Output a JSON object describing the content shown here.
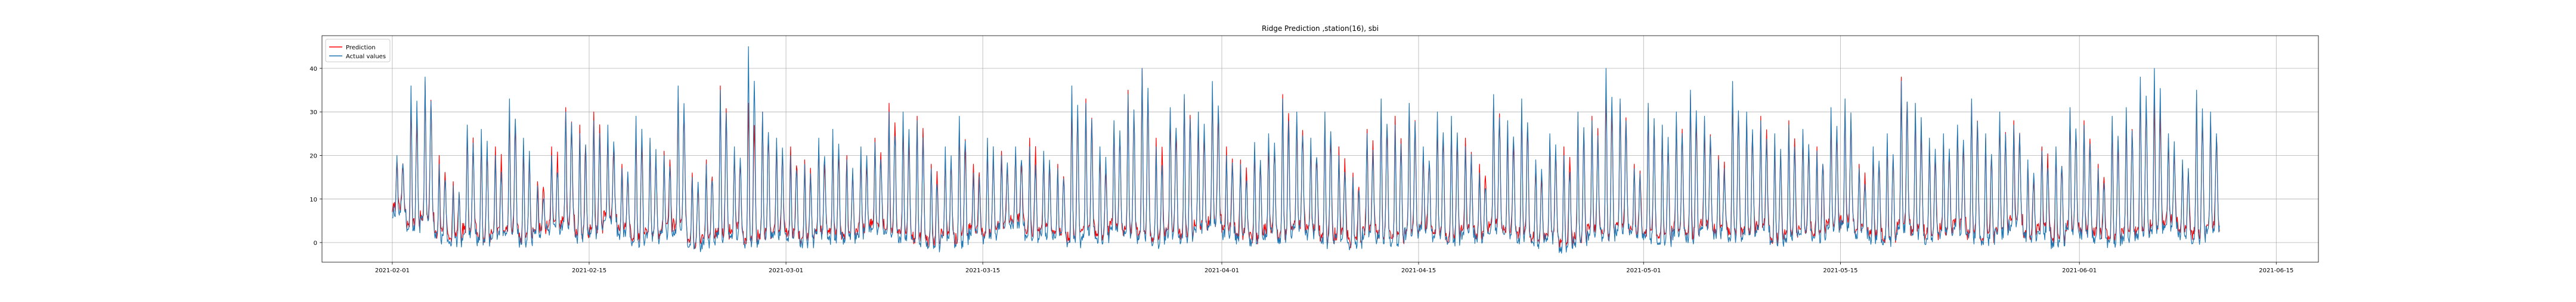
{
  "chart_data": {
    "type": "line",
    "title": "Ridge Prediction ,station(16), sbi",
    "xlabel": "",
    "ylabel": "",
    "x_range": [
      "2021-01-27",
      "2021-06-18"
    ],
    "ylim": [
      -4.5,
      47.5
    ],
    "x_ticks": [
      "2021-02-01",
      "2021-02-15",
      "2021-03-01",
      "2021-03-15",
      "2021-04-01",
      "2021-04-15",
      "2021-05-01",
      "2021-05-15",
      "2021-06-01",
      "2021-06-15"
    ],
    "y_ticks": [
      0,
      10,
      20,
      30,
      40
    ],
    "grid": true,
    "legend_position": "top-left",
    "data_start": "2021-02-01",
    "data_end": "2021-06-10",
    "samples_per_day": 24,
    "series": [
      {
        "name": "Prediction",
        "color": "#ff0000",
        "daily_peak": [
          19,
          33,
          37,
          20,
          14,
          26,
          24,
          22,
          31,
          22,
          14,
          22,
          31,
          27,
          30,
          25,
          18,
          27,
          23,
          21,
          35,
          16,
          19,
          36,
          21,
          32,
          30,
          23,
          22,
          19,
          22,
          24,
          20,
          20,
          24,
          32,
          28,
          29,
          18,
          20,
          27,
          18,
          22,
          21,
          21,
          24,
          20,
          18,
          34,
          33,
          20,
          27,
          35,
          40,
          24,
          30,
          33,
          28,
          34,
          22,
          19,
          21,
          24,
          34,
          29,
          22,
          28,
          22,
          16,
          26,
          31,
          29,
          31,
          21,
          28,
          27,
          24,
          18,
          33,
          27,
          31,
          18,
          24,
          22,
          29,
          29,
          35,
          32,
          18,
          31,
          26,
          29,
          34,
          28,
          20,
          35,
          29,
          29,
          24,
          28,
          25,
          22,
          29,
          31,
          18,
          21,
          23,
          38,
          30,
          23,
          24,
          26,
          32,
          24,
          28,
          28,
          18,
          22,
          20,
          30,
          28,
          18,
          27,
          29,
          36,
          33,
          24,
          18,
          34,
          29,
          29
        ],
        "daily_trough": [
          8,
          4,
          6,
          2,
          1,
          3,
          1,
          2,
          3,
          1,
          3,
          4,
          5,
          2,
          3,
          6,
          3,
          1,
          2,
          3,
          4,
          0,
          1,
          2,
          3,
          1,
          2,
          3,
          2,
          1,
          3,
          2,
          2,
          3,
          4,
          3,
          2,
          1,
          0,
          2,
          1,
          3,
          2,
          4,
          5,
          2,
          3,
          2,
          1,
          3,
          2,
          4,
          3,
          2,
          1,
          3,
          2,
          4,
          5,
          3,
          2,
          1,
          3,
          2,
          4,
          3,
          1,
          2,
          0,
          3,
          2,
          1,
          3,
          4,
          2,
          1,
          3,
          2,
          4,
          3,
          2,
          1,
          2,
          0,
          1,
          3,
          2,
          4,
          3,
          2,
          1,
          3,
          2,
          4,
          3,
          2,
          3,
          4,
          1,
          2,
          3,
          2,
          4,
          5,
          3,
          2,
          1,
          4,
          3,
          2,
          3,
          4,
          2,
          1,
          3,
          5,
          2,
          3,
          1,
          4,
          3,
          2,
          1,
          2,
          3,
          4,
          5,
          3,
          2,
          4,
          3
        ]
      },
      {
        "name": "Actual values",
        "color": "#1f77b4",
        "daily_peak": [
          20,
          36,
          38,
          18,
          13,
          27,
          26,
          20,
          33,
          24,
          13,
          20,
          30,
          25,
          28,
          27,
          17,
          29,
          24,
          20,
          36,
          15,
          18,
          35,
          22,
          45,
          30,
          24,
          20,
          18,
          24,
          26,
          19,
          22,
          23,
          30,
          30,
          28,
          17,
          22,
          29,
          16,
          24,
          20,
          22,
          22,
          21,
          17,
          36,
          32,
          22,
          28,
          34,
          40,
          22,
          31,
          34,
          30,
          37,
          20,
          18,
          23,
          25,
          33,
          30,
          24,
          30,
          20,
          15,
          25,
          33,
          27,
          32,
          22,
          30,
          29,
          22,
          16,
          34,
          28,
          33,
          19,
          25,
          20,
          30,
          28,
          40,
          33,
          17,
          32,
          27,
          30,
          35,
          29,
          19,
          37,
          30,
          28,
          25,
          27,
          26,
          21,
          31,
          33,
          17,
          22,
          25,
          37,
          32,
          24,
          25,
          27,
          33,
          25,
          30,
          27,
          19,
          21,
          22,
          31,
          27,
          17,
          29,
          31,
          38,
          40,
          25,
          19,
          35,
          30,
          28
        ],
        "daily_trough": [
          7,
          3,
          5,
          1,
          0,
          2,
          0,
          1,
          2,
          0,
          2,
          3,
          4,
          1,
          2,
          5,
          2,
          0,
          1,
          2,
          3,
          -1,
          0,
          1,
          2,
          0,
          1,
          2,
          1,
          0,
          2,
          1,
          1,
          2,
          3,
          2,
          1,
          0,
          -1,
          1,
          0,
          2,
          1,
          3,
          4,
          1,
          2,
          1,
          0,
          2,
          1,
          3,
          2,
          1,
          0,
          2,
          1,
          3,
          4,
          2,
          1,
          0,
          2,
          1,
          3,
          2,
          0,
          1,
          -1,
          2,
          1,
          0,
          2,
          3,
          1,
          0,
          2,
          1,
          3,
          2,
          1,
          0,
          1,
          -1,
          0,
          2,
          1,
          3,
          2,
          1,
          0,
          2,
          1,
          3,
          2,
          1,
          2,
          3,
          0,
          1,
          2,
          1,
          3,
          4,
          2,
          1,
          0,
          3,
          2,
          1,
          2,
          3,
          1,
          0,
          2,
          4,
          1,
          2,
          0,
          3,
          2,
          1,
          0,
          1,
          2,
          3,
          4,
          2,
          1,
          3,
          2
        ]
      }
    ]
  }
}
